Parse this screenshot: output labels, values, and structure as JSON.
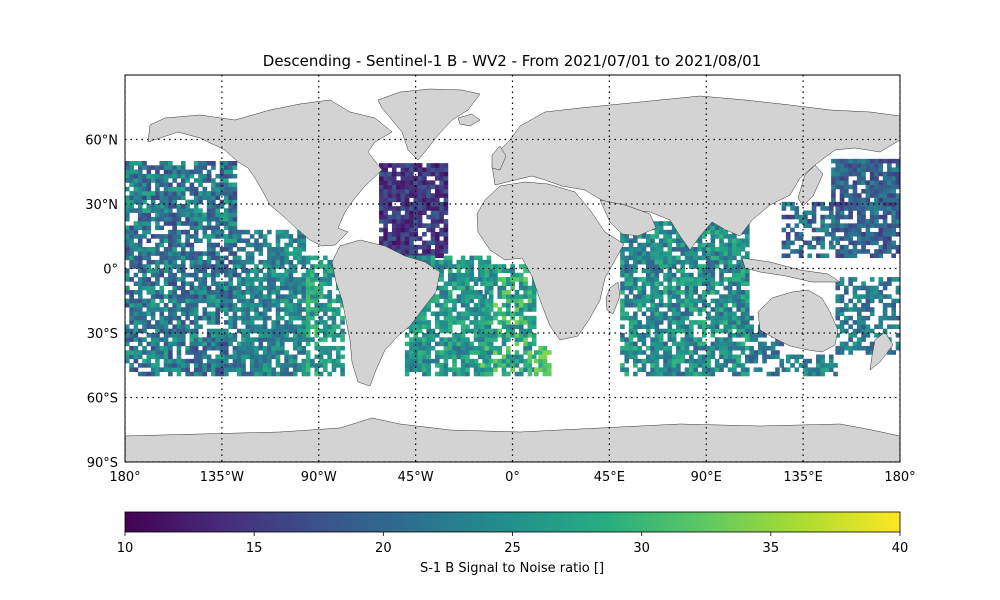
{
  "figure": {
    "title": "Descending - Sentinel-1 B - WV2 - From 2021/07/01 to 2021/08/01"
  },
  "map": {
    "projection": "plate-carree",
    "lon_range": [
      -180,
      180
    ],
    "lat_range": [
      -90,
      90
    ],
    "data_lat_range": [
      -50,
      50
    ],
    "gridlines": "dotted",
    "land_color": "#d3d3d3",
    "ocean_color": "#ffffff",
    "lon_ticks": [
      {
        "value": -180,
        "label": "180°"
      },
      {
        "value": -135,
        "label": "135°W"
      },
      {
        "value": -90,
        "label": "90°W"
      },
      {
        "value": -45,
        "label": "45°W"
      },
      {
        "value": 0,
        "label": "0°"
      },
      {
        "value": 45,
        "label": "45°E"
      },
      {
        "value": 90,
        "label": "90°E"
      },
      {
        "value": 135,
        "label": "135°E"
      },
      {
        "value": 180,
        "label": "180°"
      }
    ],
    "lat_ticks": [
      {
        "value": 60,
        "label": "60°N"
      },
      {
        "value": 30,
        "label": "30°N"
      },
      {
        "value": 0,
        "label": "0°"
      },
      {
        "value": -30,
        "label": "30°S"
      },
      {
        "value": -60,
        "label": "60°S"
      },
      {
        "value": -90,
        "label": "90°S"
      }
    ]
  },
  "colorbar": {
    "label": "S-1 B Signal to Noise ratio []",
    "colormap": "viridis",
    "range": [
      10,
      40
    ],
    "ticks": [
      {
        "value": 10,
        "label": "10"
      },
      {
        "value": 15,
        "label": "15"
      },
      {
        "value": 20,
        "label": "20"
      },
      {
        "value": 25,
        "label": "25"
      },
      {
        "value": 30,
        "label": "30"
      },
      {
        "value": 35,
        "label": "35"
      },
      {
        "value": 40,
        "label": "40"
      }
    ]
  },
  "observation_regions": [
    {
      "lon": [
        -180,
        -128
      ],
      "lat": [
        -50,
        50
      ],
      "snr": [
        16,
        28
      ],
      "density": 0.78
    },
    {
      "lon": [
        -128,
        -96
      ],
      "lat": [
        -50,
        18
      ],
      "snr": [
        19,
        28
      ],
      "density": 0.8
    },
    {
      "lon": [
        -96,
        -78
      ],
      "lat": [
        -50,
        6
      ],
      "snr": [
        22,
        31
      ],
      "density": 0.72
    },
    {
      "lon": [
        -62,
        -30
      ],
      "lat": [
        5,
        48
      ],
      "snr": [
        11,
        19
      ],
      "density": 0.9
    },
    {
      "lon": [
        -50,
        -10
      ],
      "lat": [
        -50,
        5
      ],
      "snr": [
        21,
        30
      ],
      "density": 0.8
    },
    {
      "lon": [
        -15,
        10
      ],
      "lat": [
        -50,
        2
      ],
      "snr": [
        22,
        34
      ],
      "density": 0.75
    },
    {
      "lon": [
        10,
        18
      ],
      "lat": [
        -50,
        -36
      ],
      "snr": [
        27,
        35
      ],
      "density": 0.8
    },
    {
      "lon": [
        50,
        110
      ],
      "lat": [
        -50,
        22
      ],
      "snr": [
        19,
        30
      ],
      "density": 0.78
    },
    {
      "lon": [
        110,
        125
      ],
      "lat": [
        -50,
        -22
      ],
      "snr": [
        18,
        26
      ],
      "density": 0.45
    },
    {
      "lon": [
        125,
        150
      ],
      "lat": [
        -50,
        -40
      ],
      "snr": [
        20,
        28
      ],
      "density": 0.5
    },
    {
      "lon": [
        125,
        148
      ],
      "lat": [
        5,
        30
      ],
      "snr": [
        15,
        25
      ],
      "density": 0.5
    },
    {
      "lon": [
        150,
        180
      ],
      "lat": [
        -40,
        -5
      ],
      "snr": [
        18,
        26
      ],
      "density": 0.6
    },
    {
      "lon": [
        148,
        180
      ],
      "lat": [
        5,
        50
      ],
      "snr": [
        15,
        24
      ],
      "density": 0.82
    }
  ]
}
